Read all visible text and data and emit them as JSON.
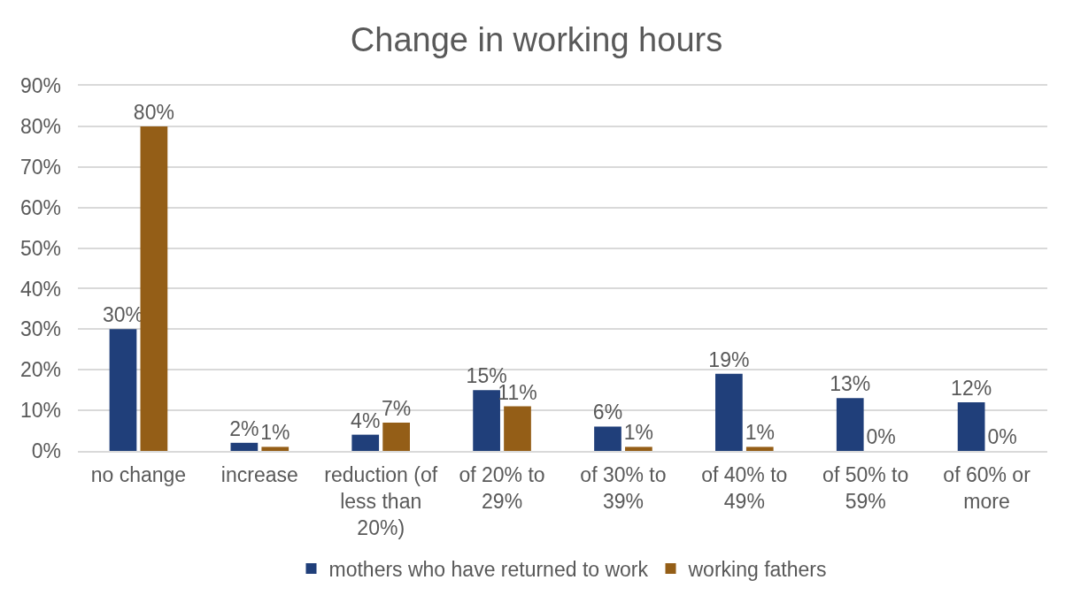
{
  "chart_data": {
    "type": "bar",
    "title": "Change in working hours",
    "categories": [
      "no change",
      "increase",
      "reduction (of less than 20%)",
      "of 20% to 29%",
      "of 30% to 39%",
      "of 40% to 49%",
      "of 50% to 59%",
      "of 60% or more"
    ],
    "series": [
      {
        "name": "mothers who have returned to work",
        "color": "#203f7a",
        "values": [
          30,
          2,
          4,
          15,
          6,
          19,
          13,
          12
        ],
        "value_labels": [
          "30%",
          "2%",
          "4%",
          "15%",
          "6%",
          "19%",
          "13%",
          "12%"
        ]
      },
      {
        "name": "working fathers",
        "color": "#945e17",
        "values": [
          80,
          1,
          7,
          11,
          1,
          1,
          0,
          0
        ],
        "value_labels": [
          "80%",
          "1%",
          "7%",
          "11%",
          "1%",
          "1%",
          "0%",
          "0%"
        ]
      }
    ],
    "ylim": [
      0,
      90
    ],
    "yticks": [
      {
        "value": 0,
        "label": "0%"
      },
      {
        "value": 10,
        "label": "10%"
      },
      {
        "value": 20,
        "label": "20%"
      },
      {
        "value": 30,
        "label": "30%"
      },
      {
        "value": 40,
        "label": "40%"
      },
      {
        "value": 50,
        "label": "50%"
      },
      {
        "value": 60,
        "label": "60%"
      },
      {
        "value": 70,
        "label": "70%"
      },
      {
        "value": 80,
        "label": "80%"
      },
      {
        "value": 90,
        "label": "90%"
      }
    ],
    "grid": "y",
    "legend": "bottom"
  }
}
